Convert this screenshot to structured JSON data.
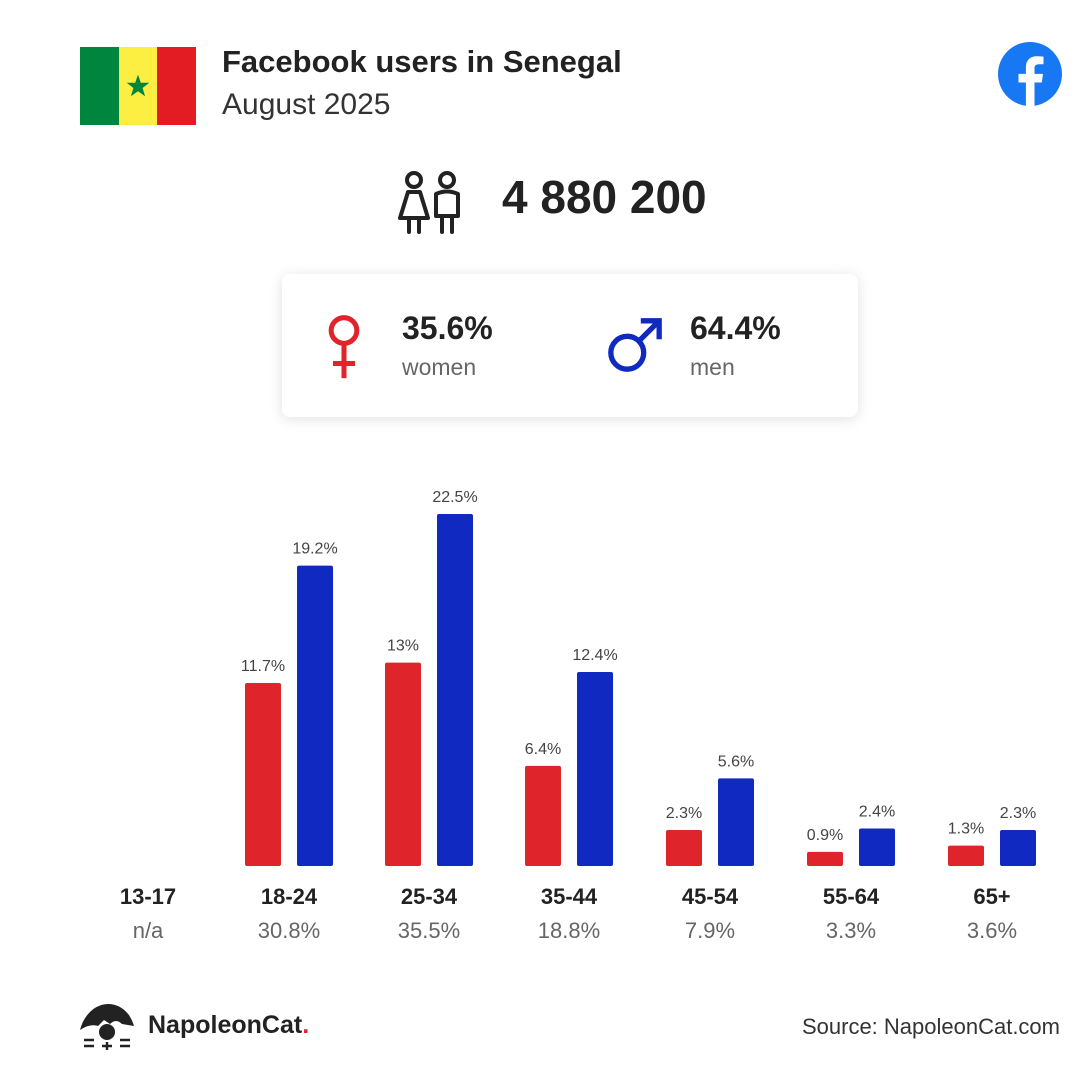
{
  "header": {
    "title": "Facebook users in Senegal",
    "subtitle": "August 2025"
  },
  "total": {
    "value": "4 880 200",
    "icon": "users-icon"
  },
  "gender": {
    "women": {
      "percent": "35.6%",
      "label": "women",
      "icon": "female-icon",
      "color": "#e0242b"
    },
    "men": {
      "percent": "64.4%",
      "label": "men",
      "icon": "male-icon",
      "color": "#1029c1"
    }
  },
  "flag": {
    "colors": [
      "#00853f",
      "#fdef42",
      "#e31b23"
    ],
    "icon": "star-icon"
  },
  "footer": {
    "brand_name": "NapoleonCat",
    "brand_dot": ".",
    "source": "Source: NapoleonCat.com"
  },
  "chart_data": {
    "type": "bar",
    "categories": [
      "13-17",
      "18-24",
      "25-34",
      "35-44",
      "45-54",
      "55-64",
      "65+"
    ],
    "category_totals": [
      "n/a",
      "30.8%",
      "35.5%",
      "18.8%",
      "7.9%",
      "3.3%",
      "3.6%"
    ],
    "series": [
      {
        "name": "women",
        "color": "#e0242b",
        "values": [
          null,
          11.7,
          13,
          6.4,
          2.3,
          0.9,
          1.3
        ],
        "labels": [
          "",
          "11.7%",
          "13%",
          "6.4%",
          "2.3%",
          "0.9%",
          "1.3%"
        ]
      },
      {
        "name": "men",
        "color": "#1029c1",
        "values": [
          null,
          19.2,
          22.5,
          12.4,
          5.6,
          2.4,
          2.3
        ],
        "labels": [
          "",
          "19.2%",
          "22.5%",
          "12.4%",
          "5.6%",
          "2.4%",
          "2.3%"
        ]
      }
    ],
    "ylim": [
      0,
      22.5
    ],
    "grid": false
  }
}
